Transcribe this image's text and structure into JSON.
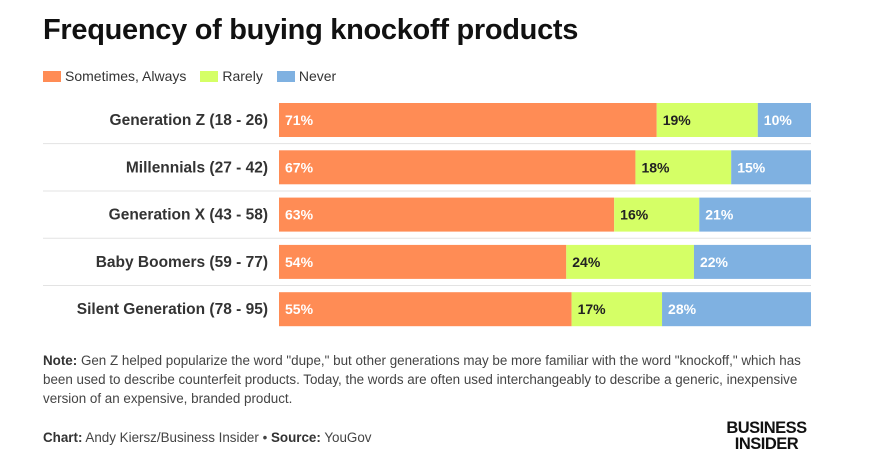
{
  "colors": {
    "sometimes_always": "#FF8C55",
    "rarely": "#D5FF66",
    "never": "#7FB1E1",
    "gridline": "#e3e3e3"
  },
  "chart_data": {
    "type": "bar",
    "orientation": "horizontal",
    "stacked": true,
    "title": "Frequency of buying knockoff products",
    "xlabel": "",
    "ylabel": "",
    "xlim": [
      0,
      100
    ],
    "grid": true,
    "legend_position": "top-left",
    "categories": [
      "Generation Z (18 - 26)",
      "Millennials (27 - 42)",
      "Generation X (43 - 58)",
      "Baby Boomers (59 - 77)",
      "Silent Generation (78 - 95)"
    ],
    "series": [
      {
        "name": "Sometimes, Always",
        "color_key": "sometimes_always",
        "values": [
          71,
          67,
          63,
          54,
          55
        ],
        "labels": [
          "71%",
          "67%",
          "63%",
          "54%",
          "55%"
        ]
      },
      {
        "name": "Rarely",
        "color_key": "rarely",
        "values": [
          19,
          18,
          16,
          24,
          17
        ],
        "labels": [
          "19%",
          "18%",
          "16%",
          "24%",
          "17%"
        ]
      },
      {
        "name": "Never",
        "color_key": "never",
        "values": [
          10,
          15,
          21,
          22,
          28
        ],
        "labels": [
          "10%",
          "15%",
          "21%",
          "22%",
          "28%"
        ]
      }
    ]
  },
  "note": {
    "prefix": "Note:",
    "text": " Gen Z helped popularize the word \"dupe,\" but other generations may be more familiar with the word \"knockoff,\" which has been used to describe counterfeit products. Today, the words are often used interchangeably to describe a generic, inexpensive version of an expensive, branded product."
  },
  "footer": {
    "chart_prefix": "Chart:",
    "chart_author": " Andy Kiersz/Business Insider",
    "separator": " • ",
    "source_prefix": "Source:",
    "source_name": " YouGov"
  },
  "logo": {
    "line1": "BUSINESS",
    "line2": "INSIDER"
  }
}
